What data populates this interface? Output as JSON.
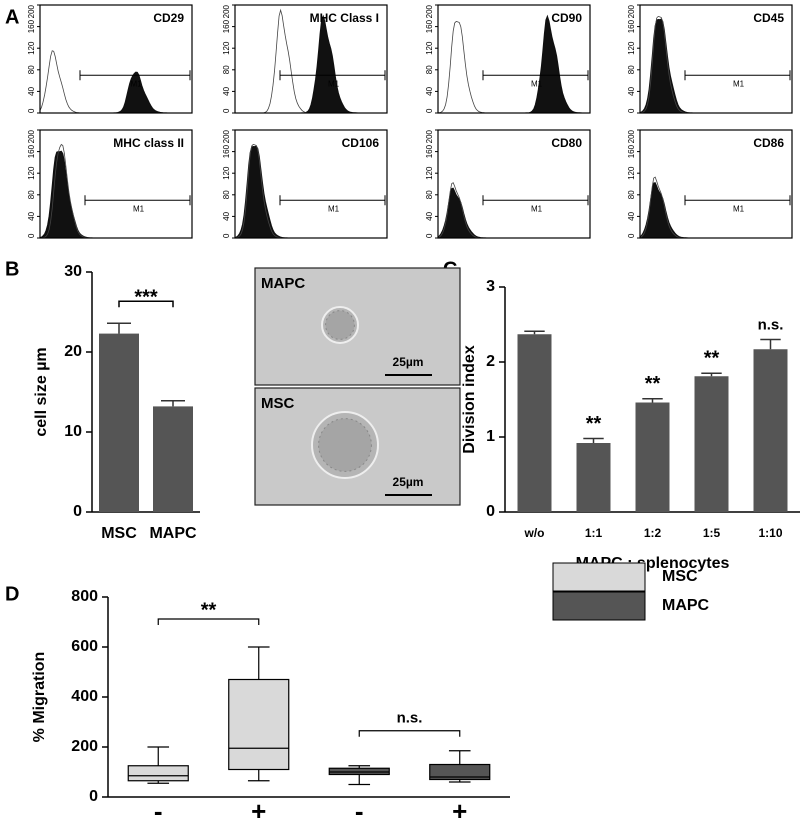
{
  "chart_data": [
    {
      "type": "flow",
      "panel": "A",
      "title": "CD29",
      "gate": "M1",
      "ylim": [
        0,
        200
      ],
      "yticks": [
        0,
        40,
        80,
        120,
        160,
        200
      ]
    },
    {
      "type": "flow",
      "title": "MHC Class I",
      "gate": "M1",
      "ylim": [
        0,
        200
      ],
      "yticks": [
        0,
        40,
        80,
        120,
        160,
        200
      ]
    },
    {
      "type": "flow",
      "title": "CD90",
      "gate": "M1",
      "ylim": [
        0,
        200
      ],
      "yticks": [
        0,
        40,
        80,
        120,
        160,
        200
      ]
    },
    {
      "type": "flow",
      "title": "CD45",
      "gate": "M1",
      "ylim": [
        0,
        200
      ],
      "yticks": [
        0,
        40,
        80,
        120,
        160,
        200
      ]
    },
    {
      "type": "flow",
      "title": "MHC class II",
      "gate": "M1",
      "ylim": [
        0,
        200
      ],
      "yticks": [
        0,
        40,
        80,
        120,
        160,
        200
      ]
    },
    {
      "type": "flow",
      "title": "CD106",
      "gate": "M1",
      "ylim": [
        0,
        200
      ],
      "yticks": [
        0,
        40,
        80,
        120,
        160,
        200
      ]
    },
    {
      "type": "flow",
      "title": "CD80",
      "gate": "M1",
      "ylim": [
        0,
        200
      ],
      "yticks": [
        0,
        40,
        80,
        120,
        160,
        200
      ]
    },
    {
      "type": "flow",
      "title": "CD86",
      "gate": "M1",
      "ylim": [
        0,
        200
      ],
      "yticks": [
        0,
        40,
        80,
        120,
        160,
        200
      ]
    },
    {
      "type": "bar",
      "panel": "B",
      "ylabel": "cell size µm",
      "categories": [
        "MSC",
        "MAPC"
      ],
      "values": [
        22.3,
        13.2
      ],
      "errors": [
        1.3,
        0.7
      ],
      "color": "#555555",
      "ylim": [
        0,
        30
      ],
      "yticks": [
        0,
        10,
        20,
        30
      ],
      "annotation": "***"
    },
    {
      "type": "bar",
      "panel": "C",
      "ylabel": "Division index",
      "xlabel": "MAPC : splenocytes",
      "categories": [
        "w/o",
        "1:1",
        "1:2",
        "1:5",
        "1:10"
      ],
      "values": [
        2.37,
        0.92,
        1.46,
        1.81,
        2.17
      ],
      "errors": [
        0.04,
        0.06,
        0.05,
        0.04,
        0.13
      ],
      "annotations": [
        null,
        "**",
        "**",
        "**",
        "n.s."
      ],
      "color": "#555555",
      "ylim": [
        0,
        3
      ],
      "yticks": [
        0,
        1,
        2,
        3
      ]
    },
    {
      "type": "box",
      "panel": "D",
      "ylabel": "% Migration",
      "categories": [
        "-",
        "+",
        "-",
        "+"
      ],
      "ylim": [
        0,
        800
      ],
      "yticks": [
        0,
        200,
        400,
        600,
        800
      ],
      "annotations": [
        "**",
        "n.s."
      ],
      "series": [
        {
          "name": "MSC",
          "color": "#d9d9d9",
          "boxes": [
            {
              "min": 55,
              "q1": 65,
              "median": 85,
              "q3": 125,
              "max": 200
            },
            {
              "min": 65,
              "q1": 110,
              "median": 195,
              "q3": 470,
              "max": 600
            },
            null,
            null
          ]
        },
        {
          "name": "MAPC",
          "color": "#555555",
          "boxes": [
            null,
            null,
            {
              "min": 50,
              "q1": 90,
              "median": 100,
              "q3": 115,
              "max": 125
            },
            {
              "min": 60,
              "q1": 70,
              "median": 80,
              "q3": 130,
              "max": 185
            }
          ]
        }
      ]
    }
  ],
  "micrographs": [
    {
      "label": "MAPC",
      "scale": "25µm"
    },
    {
      "label": "MSC",
      "scale": "25µm"
    }
  ]
}
